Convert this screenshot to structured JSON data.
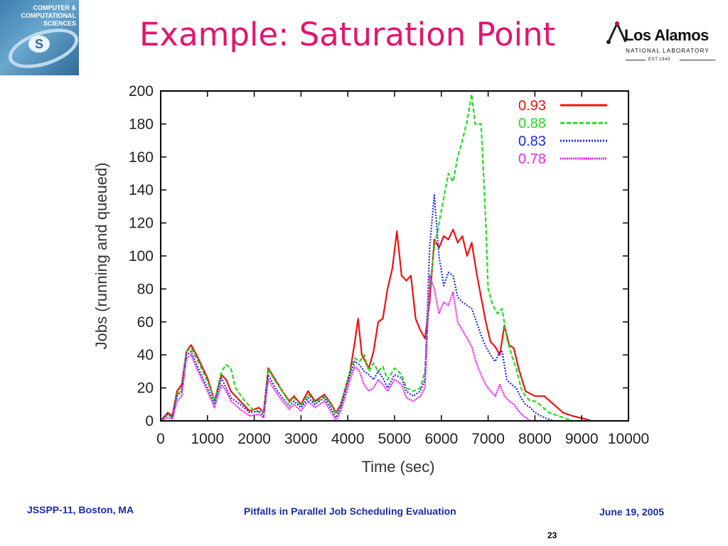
{
  "slide": {
    "title": "Example: Saturation Point",
    "footer_left": "JSSPP-11, Boston, MA",
    "footer_center": "Pitfalls in Parallel Job Scheduling Evaluation",
    "footer_right": "June 19, 2005",
    "page_number": "23"
  },
  "logos": {
    "left": {
      "lines": [
        "COMPUTER &",
        "COMPUTATIONAL",
        "SCIENCES"
      ]
    },
    "right": {
      "name": "Los Alamos",
      "sub": "NATIONAL LABORATORY",
      "est": "EST.1943"
    }
  },
  "colors": {
    "title": "#e3156e",
    "footer": "#1d2aa8"
  },
  "chart_data": {
    "type": "line",
    "xlabel": "Time (sec)",
    "ylabel": "Jobs (running and queued)",
    "xlim": [
      0,
      10000
    ],
    "ylim": [
      0,
      200
    ],
    "x_ticks": [
      0,
      1000,
      2000,
      3000,
      4000,
      5000,
      6000,
      7000,
      8000,
      9000,
      10000
    ],
    "y_ticks": [
      0,
      20,
      40,
      60,
      80,
      100,
      120,
      140,
      160,
      180,
      200
    ],
    "grid": false,
    "legend_position": "top-right",
    "series": [
      {
        "name": "0.93",
        "color": "#ee1111",
        "dash": "",
        "points": [
          [
            0,
            0
          ],
          [
            150,
            5
          ],
          [
            250,
            3
          ],
          [
            350,
            18
          ],
          [
            450,
            22
          ],
          [
            550,
            42
          ],
          [
            650,
            46
          ],
          [
            800,
            38
          ],
          [
            1000,
            26
          ],
          [
            1150,
            12
          ],
          [
            1300,
            28
          ],
          [
            1400,
            25
          ],
          [
            1500,
            18
          ],
          [
            1700,
            12
          ],
          [
            1900,
            6
          ],
          [
            2100,
            8
          ],
          [
            2200,
            5
          ],
          [
            2300,
            32
          ],
          [
            2450,
            25
          ],
          [
            2600,
            18
          ],
          [
            2750,
            12
          ],
          [
            2850,
            15
          ],
          [
            3000,
            10
          ],
          [
            3150,
            18
          ],
          [
            3300,
            12
          ],
          [
            3500,
            16
          ],
          [
            3650,
            10
          ],
          [
            3750,
            5
          ],
          [
            3850,
            10
          ],
          [
            3950,
            20
          ],
          [
            4050,
            30
          ],
          [
            4150,
            48
          ],
          [
            4220,
            62
          ],
          [
            4300,
            40
          ],
          [
            4450,
            32
          ],
          [
            4550,
            42
          ],
          [
            4650,
            60
          ],
          [
            4750,
            62
          ],
          [
            4850,
            80
          ],
          [
            4950,
            92
          ],
          [
            5050,
            115
          ],
          [
            5150,
            88
          ],
          [
            5250,
            85
          ],
          [
            5350,
            88
          ],
          [
            5450,
            62
          ],
          [
            5550,
            55
          ],
          [
            5650,
            50
          ],
          [
            5750,
            72
          ],
          [
            5850,
            110
          ],
          [
            5950,
            105
          ],
          [
            6050,
            112
          ],
          [
            6150,
            110
          ],
          [
            6250,
            116
          ],
          [
            6350,
            108
          ],
          [
            6450,
            112
          ],
          [
            6550,
            100
          ],
          [
            6650,
            108
          ],
          [
            6750,
            90
          ],
          [
            6850,
            75
          ],
          [
            6950,
            60
          ],
          [
            7050,
            48
          ],
          [
            7150,
            45
          ],
          [
            7250,
            40
          ],
          [
            7350,
            58
          ],
          [
            7450,
            46
          ],
          [
            7550,
            44
          ],
          [
            7650,
            32
          ],
          [
            7800,
            18
          ],
          [
            8000,
            15
          ],
          [
            8200,
            15
          ],
          [
            8400,
            10
          ],
          [
            8600,
            5
          ],
          [
            8800,
            3
          ],
          [
            9100,
            1
          ],
          [
            9200,
            0
          ]
        ]
      },
      {
        "name": "0.88",
        "color": "#22dd22",
        "dash": "6 3",
        "points": [
          [
            0,
            0
          ],
          [
            150,
            4
          ],
          [
            250,
            2
          ],
          [
            350,
            16
          ],
          [
            450,
            20
          ],
          [
            550,
            42
          ],
          [
            650,
            44
          ],
          [
            800,
            36
          ],
          [
            1000,
            24
          ],
          [
            1150,
            12
          ],
          [
            1300,
            30
          ],
          [
            1400,
            34
          ],
          [
            1500,
            32
          ],
          [
            1600,
            20
          ],
          [
            1800,
            12
          ],
          [
            2000,
            6
          ],
          [
            2200,
            5
          ],
          [
            2300,
            31
          ],
          [
            2450,
            24
          ],
          [
            2600,
            18
          ],
          [
            2750,
            11
          ],
          [
            2850,
            14
          ],
          [
            3000,
            9
          ],
          [
            3150,
            16
          ],
          [
            3300,
            11
          ],
          [
            3500,
            15
          ],
          [
            3650,
            9
          ],
          [
            3750,
            4
          ],
          [
            3850,
            9
          ],
          [
            3950,
            20
          ],
          [
            4050,
            30
          ],
          [
            4150,
            38
          ],
          [
            4250,
            36
          ],
          [
            4350,
            40
          ],
          [
            4450,
            30
          ],
          [
            4550,
            35
          ],
          [
            4650,
            30
          ],
          [
            4750,
            33
          ],
          [
            4850,
            25
          ],
          [
            5000,
            32
          ],
          [
            5150,
            28
          ],
          [
            5250,
            20
          ],
          [
            5400,
            18
          ],
          [
            5550,
            20
          ],
          [
            5650,
            30
          ],
          [
            5750,
            80
          ],
          [
            5850,
            105
          ],
          [
            5950,
            120
          ],
          [
            6050,
            135
          ],
          [
            6150,
            150
          ],
          [
            6250,
            145
          ],
          [
            6350,
            160
          ],
          [
            6450,
            170
          ],
          [
            6550,
            182
          ],
          [
            6650,
            198
          ],
          [
            6720,
            180
          ],
          [
            6850,
            180
          ],
          [
            6950,
            120
          ],
          [
            7000,
            80
          ],
          [
            7100,
            70
          ],
          [
            7200,
            65
          ],
          [
            7300,
            68
          ],
          [
            7400,
            50
          ],
          [
            7500,
            40
          ],
          [
            7600,
            32
          ],
          [
            7700,
            20
          ],
          [
            7800,
            15
          ],
          [
            7900,
            12
          ],
          [
            8000,
            12
          ],
          [
            8100,
            10
          ],
          [
            8300,
            5
          ],
          [
            8500,
            3
          ],
          [
            8700,
            1
          ],
          [
            8800,
            0
          ]
        ]
      },
      {
        "name": "0.83",
        "color": "#1a2ae6",
        "dash": "2 2",
        "points": [
          [
            0,
            0
          ],
          [
            150,
            4
          ],
          [
            250,
            2
          ],
          [
            350,
            15
          ],
          [
            450,
            18
          ],
          [
            550,
            40
          ],
          [
            650,
            42
          ],
          [
            800,
            32
          ],
          [
            1000,
            20
          ],
          [
            1150,
            10
          ],
          [
            1300,
            26
          ],
          [
            1400,
            20
          ],
          [
            1500,
            14
          ],
          [
            1700,
            10
          ],
          [
            1900,
            5
          ],
          [
            2100,
            6
          ],
          [
            2200,
            3
          ],
          [
            2300,
            28
          ],
          [
            2450,
            20
          ],
          [
            2600,
            14
          ],
          [
            2750,
            9
          ],
          [
            2850,
            12
          ],
          [
            3000,
            8
          ],
          [
            3150,
            14
          ],
          [
            3300,
            10
          ],
          [
            3500,
            14
          ],
          [
            3650,
            7
          ],
          [
            3750,
            2
          ],
          [
            3850,
            8
          ],
          [
            3950,
            18
          ],
          [
            4050,
            28
          ],
          [
            4150,
            36
          ],
          [
            4250,
            34
          ],
          [
            4350,
            30
          ],
          [
            4450,
            28
          ],
          [
            4550,
            25
          ],
          [
            4650,
            30
          ],
          [
            4750,
            26
          ],
          [
            4850,
            20
          ],
          [
            5000,
            28
          ],
          [
            5150,
            26
          ],
          [
            5250,
            18
          ],
          [
            5400,
            15
          ],
          [
            5550,
            18
          ],
          [
            5650,
            25
          ],
          [
            5750,
            105
          ],
          [
            5850,
            137
          ],
          [
            5950,
            100
          ],
          [
            6050,
            82
          ],
          [
            6150,
            90
          ],
          [
            6250,
            88
          ],
          [
            6350,
            75
          ],
          [
            6450,
            72
          ],
          [
            6550,
            70
          ],
          [
            6650,
            68
          ],
          [
            6750,
            60
          ],
          [
            6850,
            52
          ],
          [
            6950,
            45
          ],
          [
            7050,
            40
          ],
          [
            7150,
            36
          ],
          [
            7250,
            42
          ],
          [
            7300,
            42
          ],
          [
            7400,
            25
          ],
          [
            7500,
            22
          ],
          [
            7600,
            20
          ],
          [
            7700,
            14
          ],
          [
            7800,
            10
          ],
          [
            7900,
            8
          ],
          [
            8000,
            5
          ],
          [
            8200,
            2
          ],
          [
            8400,
            0
          ]
        ]
      },
      {
        "name": "0.78",
        "color": "#ee22ee",
        "dash": "2 1",
        "points": [
          [
            0,
            0
          ],
          [
            150,
            2
          ],
          [
            250,
            1
          ],
          [
            350,
            12
          ],
          [
            450,
            15
          ],
          [
            550,
            38
          ],
          [
            650,
            40
          ],
          [
            800,
            30
          ],
          [
            1000,
            18
          ],
          [
            1150,
            8
          ],
          [
            1300,
            22
          ],
          [
            1400,
            18
          ],
          [
            1500,
            12
          ],
          [
            1700,
            7
          ],
          [
            1900,
            3
          ],
          [
            2100,
            4
          ],
          [
            2200,
            2
          ],
          [
            2300,
            25
          ],
          [
            2450,
            18
          ],
          [
            2600,
            12
          ],
          [
            2750,
            7
          ],
          [
            2850,
            10
          ],
          [
            3000,
            6
          ],
          [
            3150,
            12
          ],
          [
            3300,
            8
          ],
          [
            3500,
            12
          ],
          [
            3650,
            5
          ],
          [
            3750,
            0
          ],
          [
            3850,
            6
          ],
          [
            3950,
            15
          ],
          [
            4050,
            25
          ],
          [
            4150,
            33
          ],
          [
            4250,
            30
          ],
          [
            4350,
            22
          ],
          [
            4450,
            18
          ],
          [
            4550,
            20
          ],
          [
            4650,
            25
          ],
          [
            4750,
            22
          ],
          [
            4850,
            18
          ],
          [
            5000,
            25
          ],
          [
            5150,
            22
          ],
          [
            5250,
            14
          ],
          [
            5400,
            12
          ],
          [
            5550,
            15
          ],
          [
            5650,
            20
          ],
          [
            5750,
            88
          ],
          [
            5850,
            80
          ],
          [
            5950,
            65
          ],
          [
            6050,
            72
          ],
          [
            6150,
            70
          ],
          [
            6250,
            78
          ],
          [
            6350,
            60
          ],
          [
            6450,
            55
          ],
          [
            6550,
            50
          ],
          [
            6650,
            45
          ],
          [
            6750,
            35
          ],
          [
            6850,
            28
          ],
          [
            6950,
            22
          ],
          [
            7050,
            18
          ],
          [
            7150,
            15
          ],
          [
            7250,
            22
          ],
          [
            7350,
            15
          ],
          [
            7450,
            12
          ],
          [
            7550,
            10
          ],
          [
            7650,
            6
          ],
          [
            7750,
            3
          ],
          [
            7900,
            0
          ]
        ]
      }
    ]
  }
}
